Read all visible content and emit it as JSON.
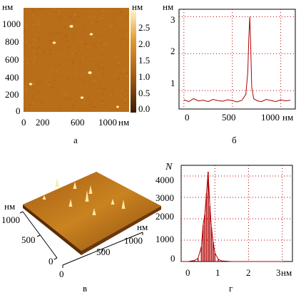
{
  "panels": {
    "a": {
      "label": "а",
      "x_unit": "нм",
      "y_unit": "нм",
      "colorbar_unit": "нм",
      "x_ticks": [
        "0",
        "200",
        "600",
        "1000"
      ],
      "y_ticks": [
        "1000",
        "800",
        "600",
        "400",
        "200",
        "0"
      ],
      "colorbar_ticks": [
        "2.5",
        "2.0",
        "1.5",
        "1.0",
        "0.5",
        "0.0"
      ]
    },
    "b": {
      "label": "б",
      "y_unit": "нм",
      "x_unit": "нм",
      "y_ticks": [
        "3",
        "2",
        "1"
      ],
      "x_ticks": [
        "0",
        "500",
        "1000"
      ]
    },
    "v": {
      "label": "в",
      "unit_left": "нм",
      "unit_right": "нм",
      "ticks_left": [
        "1000",
        "500",
        "0"
      ],
      "ticks_right": [
        "0",
        "500",
        "1000"
      ]
    },
    "g": {
      "label": "г",
      "y_label": "N",
      "x_unit": "нм",
      "y_ticks": [
        "4000",
        "3000",
        "2000",
        "1000",
        "0"
      ],
      "x_ticks": [
        "0",
        "1",
        "2",
        "3"
      ]
    }
  },
  "colors": {
    "afm_dark": "#8a4a10",
    "afm_mid": "#c77a1c",
    "afm_bright": "#fff3c8",
    "plot_line": "#b00000",
    "grid": "#b00000"
  },
  "chart_data": [
    {
      "type": "line",
      "panel": "б",
      "x": [
        0,
        50,
        100,
        150,
        200,
        250,
        300,
        350,
        400,
        450,
        500,
        550,
        600,
        640,
        660,
        670,
        680,
        690,
        700,
        720,
        760,
        800,
        850,
        900,
        950,
        1000,
        1050,
        1100
      ],
      "y": [
        0.75,
        0.7,
        0.78,
        0.72,
        0.74,
        0.7,
        0.76,
        0.73,
        0.71,
        0.75,
        0.73,
        0.69,
        0.74,
        0.9,
        1.5,
        2.4,
        3.0,
        2.2,
        1.1,
        0.78,
        0.72,
        0.7,
        0.76,
        0.73,
        0.7,
        0.75,
        0.72,
        0.74
      ],
      "xlim": [
        -50,
        1150
      ],
      "ylim": [
        0.5,
        3.2
      ]
    },
    {
      "type": "bar",
      "panel": "г",
      "x": [
        0.0,
        0.2,
        0.4,
        0.5,
        0.6,
        0.65,
        0.7,
        0.75,
        0.8,
        0.85,
        0.9,
        0.95,
        1.0,
        1.1,
        1.2,
        1.5,
        2.0,
        2.5,
        3.0
      ],
      "values": [
        0,
        0,
        50,
        150,
        700,
        1700,
        2200,
        3200,
        4200,
        2600,
        1600,
        900,
        400,
        100,
        30,
        0,
        0,
        0,
        0
      ],
      "xlim": [
        0,
        3.3
      ],
      "ylim": [
        0,
        4500
      ]
    }
  ]
}
